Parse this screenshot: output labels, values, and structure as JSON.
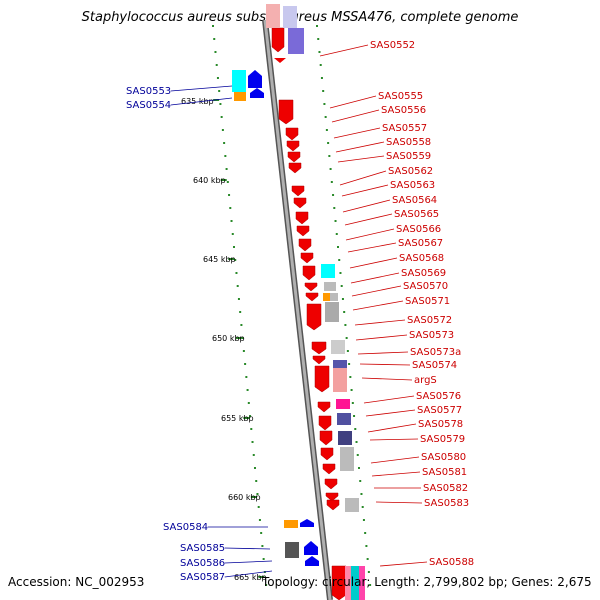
{
  "title": "Staphylococcus aureus subsp. aureus MSSA476, complete genome",
  "accession": "Accession: NC_002953",
  "topology": "Topology: circular; Length: 2,799,802 bp; Genes: 2,675",
  "colors": {
    "forward_gene": "#ff0000",
    "reverse_gene": "#0000ff",
    "backbone": "#8a8a8a",
    "label_right": "#cc0000",
    "label_left": "#000099"
  },
  "ticks": [
    "635 kbp",
    "640 kbp",
    "645 kbp",
    "650 kbp",
    "655 kbp",
    "660 kbp",
    "665 kbp"
  ],
  "right_labels": [
    "SAS0552",
    "SAS0555",
    "SAS0556",
    "SAS0557",
    "SAS0558",
    "SAS0559",
    "SAS0562",
    "SAS0563",
    "SAS0564",
    "SAS0565",
    "SAS0566",
    "SAS0567",
    "SAS0568",
    "SAS0569",
    "SAS0570",
    "SAS0571",
    "SAS0572",
    "SAS0573",
    "SAS0573a",
    "SAS0574",
    "argS",
    "SAS0576",
    "SAS0577",
    "SAS0578",
    "SAS0579",
    "SAS0580",
    "SAS0581",
    "SAS0582",
    "SAS0583",
    "SAS0588"
  ],
  "left_labels": [
    "SAS0553",
    "SAS0554",
    "SAS0584",
    "SAS0585",
    "SAS0586",
    "SAS0587"
  ]
}
